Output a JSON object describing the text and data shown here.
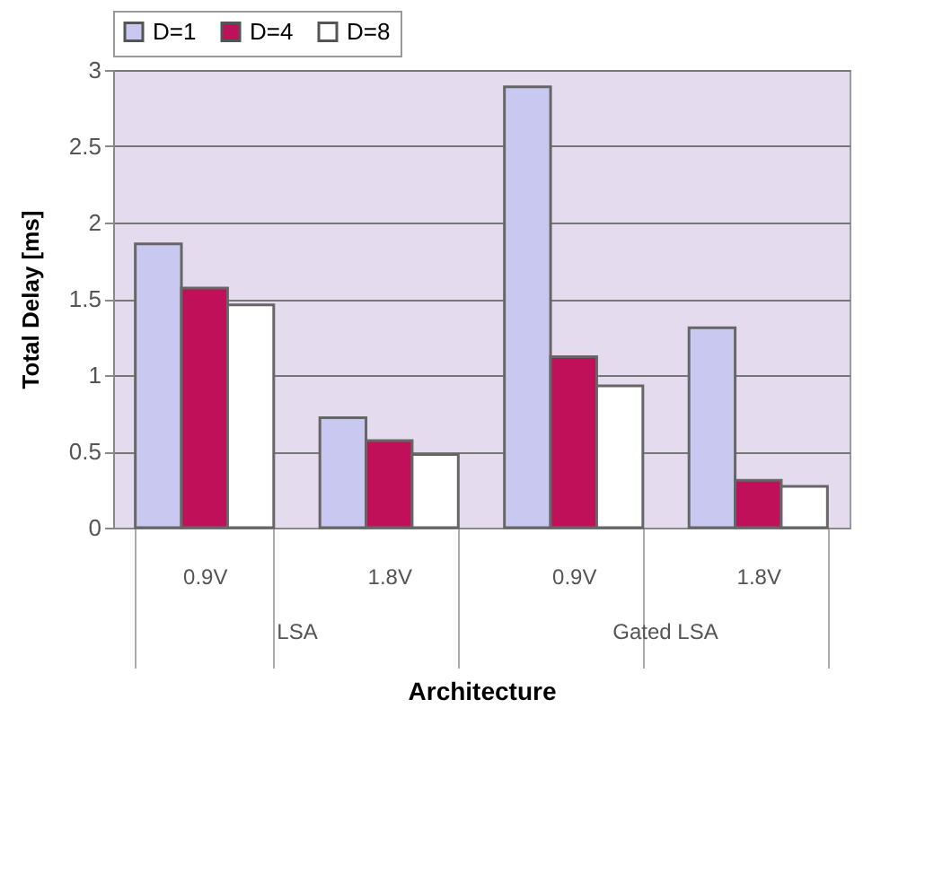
{
  "chart_data": {
    "type": "bar",
    "xlabel": "Architecture",
    "ylabel": "Total Delay [ms]",
    "categories": [
      "0.9V",
      "1.8V",
      "0.9V",
      "1.8V"
    ],
    "annotations": [
      "LSA",
      "Gated LSA"
    ],
    "series": [
      {
        "name": "D=1",
        "color": "#c8c8f0",
        "values": [
          1.86,
          0.72,
          2.89,
          1.31
        ]
      },
      {
        "name": "D=4",
        "color": "#c0105a",
        "values": [
          1.57,
          0.57,
          1.12,
          0.31
        ]
      },
      {
        "name": "D=8",
        "color": "#ffffff",
        "values": [
          1.46,
          0.48,
          0.93,
          0.27
        ]
      }
    ],
    "ylim": [
      0,
      3
    ],
    "yticks": [
      {
        "value": 0,
        "label": "0"
      },
      0.5,
      {
        "value": 1,
        "label": "1"
      },
      1.5,
      {
        "value": 2,
        "label": "2"
      },
      2.5,
      {
        "value": 3,
        "label": "3"
      }
    ],
    "grid": "y",
    "legend": "top"
  }
}
